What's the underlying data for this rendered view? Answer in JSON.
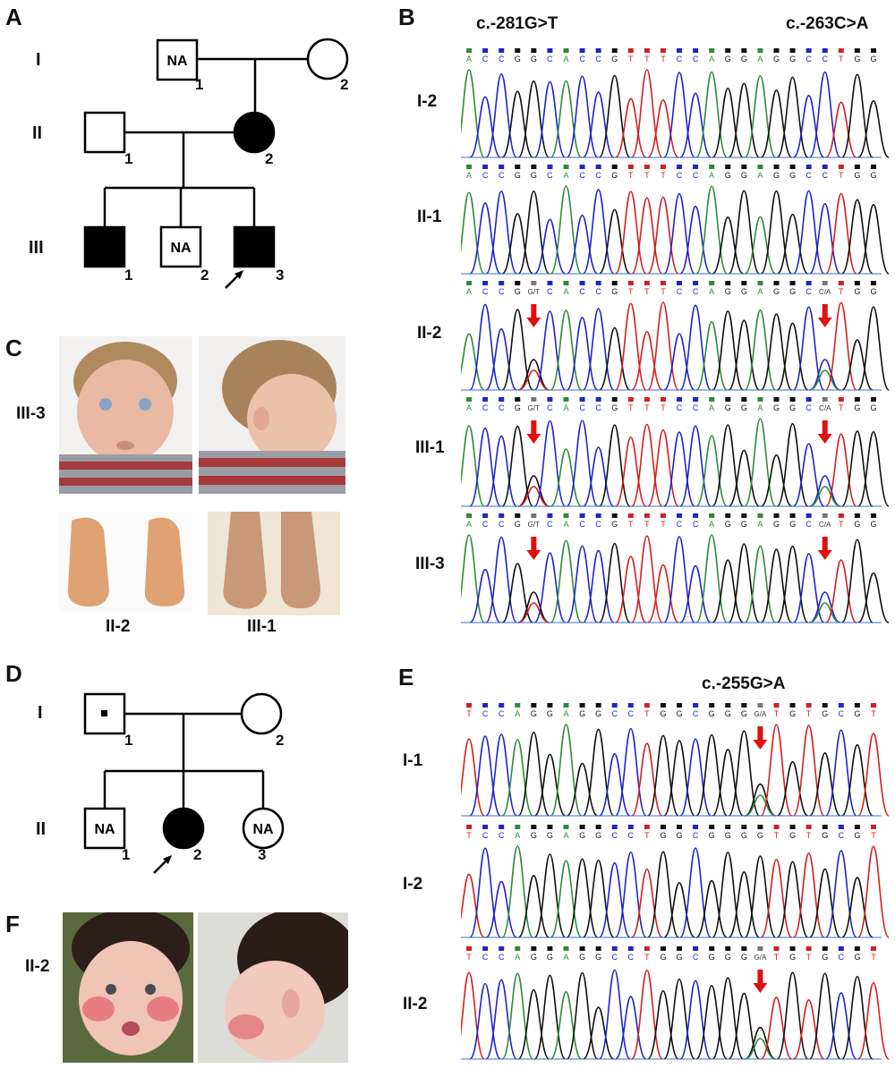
{
  "panels": {
    "A": "A",
    "B": "B",
    "C": "C",
    "D": "D",
    "E": "E",
    "F": "F"
  },
  "pedigreeA": {
    "generations": [
      "I",
      "II",
      "III"
    ],
    "na": "NA",
    "numbers": {
      "I1": "1",
      "I2": "2",
      "II1": "1",
      "II2": "2",
      "III1": "1",
      "III2": "2",
      "III3": "3"
    }
  },
  "panelB": {
    "mutation_left": "c.-281G>T",
    "mutation_right": "c.-263C>A",
    "rows": [
      "I-2",
      "II-1",
      "II-2",
      "III-1",
      "III-3"
    ],
    "seq_normal": [
      "A",
      "C",
      "C",
      "G",
      "G",
      "C",
      "A",
      "C",
      "C",
      "G",
      "T",
      "T",
      "T",
      "C",
      "C",
      "A",
      "G",
      "G",
      "A",
      "G",
      "G",
      "C",
      "C",
      "T",
      "G",
      "G"
    ],
    "seq_het": [
      "A",
      "C",
      "C",
      "G",
      "G/T",
      "C",
      "A",
      "C",
      "C",
      "G",
      "T",
      "T",
      "T",
      "C",
      "C",
      "A",
      "G",
      "G",
      "A",
      "G",
      "G",
      "C",
      "C/A",
      "T",
      "G",
      "G"
    ]
  },
  "panelC": {
    "row_label": "III-3",
    "caption_left": "II-2",
    "caption_right": "III-1"
  },
  "pedigreeD": {
    "generations": [
      "I",
      "II"
    ],
    "na": "NA",
    "numbers": {
      "I1": "1",
      "I2": "2",
      "II1": "1",
      "II2": "2",
      "II3": "3"
    }
  },
  "panelE": {
    "mutation": "c.-255G>A",
    "rows": [
      "I-1",
      "I-2",
      "II-2"
    ],
    "seq_normal": [
      "T",
      "C",
      "C",
      "A",
      "G",
      "G",
      "A",
      "G",
      "G",
      "C",
      "C",
      "T",
      "G",
      "G",
      "C",
      "G",
      "G",
      "G",
      "G",
      "T",
      "G",
      "T",
      "G",
      "C",
      "G",
      "T"
    ],
    "seq_het": [
      "T",
      "C",
      "C",
      "A",
      "G",
      "G",
      "A",
      "G",
      "G",
      "C",
      "C",
      "T",
      "G",
      "G",
      "C",
      "G",
      "G",
      "G",
      "G/A",
      "T",
      "G",
      "T",
      "G",
      "C",
      "G",
      "T"
    ]
  },
  "panelF": {
    "row_label": "II-2"
  },
  "colors": {
    "A": "#2e8b3a",
    "C": "#2323c8",
    "G": "#111111",
    "T": "#d42020",
    "arrow": "#e01010"
  }
}
